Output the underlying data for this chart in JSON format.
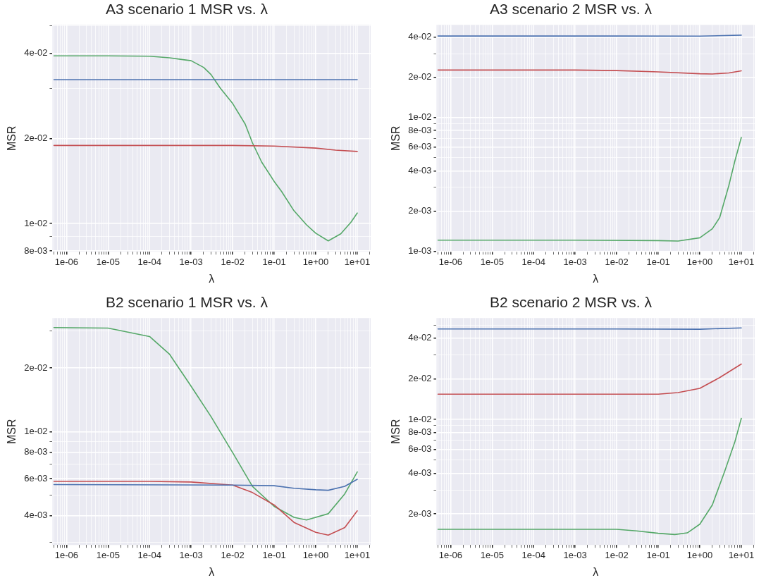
{
  "chart_data": [
    {
      "type": "line",
      "title": "A3 scenario 1 MSR vs. λ",
      "xlabel": "λ",
      "ylabel": "MSR",
      "log": "xy",
      "grid": true,
      "xlim": [
        4.6e-07,
        21
      ],
      "ylim": [
        0.00795,
        0.0505
      ],
      "xticks": [
        {
          "value": 5e-07,
          "label": null
        },
        {
          "value": 6e-07,
          "label": null
        },
        {
          "value": 7e-07,
          "label": null
        },
        {
          "value": 8e-07,
          "label": null
        },
        {
          "value": 9e-07,
          "label": null
        },
        {
          "value": 1e-06,
          "label": "1e-06"
        },
        {
          "value": 2e-06,
          "label": null
        },
        {
          "value": 3e-06,
          "label": null
        },
        {
          "value": 4e-06,
          "label": null
        },
        {
          "value": 5e-06,
          "label": null
        },
        {
          "value": 6e-06,
          "label": null
        },
        {
          "value": 7e-06,
          "label": null
        },
        {
          "value": 8e-06,
          "label": null
        },
        {
          "value": 9e-06,
          "label": null
        },
        {
          "value": 1e-05,
          "label": "1e-05"
        },
        {
          "value": 2e-05,
          "label": null
        },
        {
          "value": 3e-05,
          "label": null
        },
        {
          "value": 4e-05,
          "label": null
        },
        {
          "value": 5e-05,
          "label": null
        },
        {
          "value": 6e-05,
          "label": null
        },
        {
          "value": 7e-05,
          "label": null
        },
        {
          "value": 8e-05,
          "label": null
        },
        {
          "value": 9e-05,
          "label": null
        },
        {
          "value": 0.0001,
          "label": "1e-04"
        },
        {
          "value": 0.0002,
          "label": null
        },
        {
          "value": 0.0003,
          "label": null
        },
        {
          "value": 0.0004,
          "label": null
        },
        {
          "value": 0.0005,
          "label": null
        },
        {
          "value": 0.0006,
          "label": null
        },
        {
          "value": 0.0007,
          "label": null
        },
        {
          "value": 0.0008,
          "label": null
        },
        {
          "value": 0.0009,
          "label": null
        },
        {
          "value": 0.001,
          "label": "1e-03"
        },
        {
          "value": 0.002,
          "label": null
        },
        {
          "value": 0.003,
          "label": null
        },
        {
          "value": 0.004,
          "label": null
        },
        {
          "value": 0.005,
          "label": null
        },
        {
          "value": 0.006,
          "label": null
        },
        {
          "value": 0.007,
          "label": null
        },
        {
          "value": 0.008,
          "label": null
        },
        {
          "value": 0.009,
          "label": null
        },
        {
          "value": 0.01,
          "label": "1e-02"
        },
        {
          "value": 0.02,
          "label": null
        },
        {
          "value": 0.03,
          "label": null
        },
        {
          "value": 0.04,
          "label": null
        },
        {
          "value": 0.05,
          "label": null
        },
        {
          "value": 0.06,
          "label": null
        },
        {
          "value": 0.07,
          "label": null
        },
        {
          "value": 0.08,
          "label": null
        },
        {
          "value": 0.09,
          "label": null
        },
        {
          "value": 0.1,
          "label": "1e-01"
        },
        {
          "value": 0.2,
          "label": null
        },
        {
          "value": 0.3,
          "label": null
        },
        {
          "value": 0.4,
          "label": null
        },
        {
          "value": 0.5,
          "label": null
        },
        {
          "value": 0.6,
          "label": null
        },
        {
          "value": 0.7,
          "label": null
        },
        {
          "value": 0.8,
          "label": null
        },
        {
          "value": 0.9,
          "label": null
        },
        {
          "value": 1,
          "label": "1e+00"
        },
        {
          "value": 2,
          "label": null
        },
        {
          "value": 3,
          "label": null
        },
        {
          "value": 4,
          "label": null
        },
        {
          "value": 5,
          "label": null
        },
        {
          "value": 6,
          "label": null
        },
        {
          "value": 7,
          "label": null
        },
        {
          "value": 8,
          "label": null
        },
        {
          "value": 9,
          "label": null
        },
        {
          "value": 10,
          "label": "1e+01"
        },
        {
          "value": 20,
          "label": null
        }
      ],
      "yticks": [
        {
          "value": 0.008,
          "label": "8e-03"
        },
        {
          "value": 0.009,
          "label": null
        },
        {
          "value": 0.01,
          "label": "1e-02"
        },
        {
          "value": 0.02,
          "label": "2e-02"
        },
        {
          "value": 0.03,
          "label": null
        },
        {
          "value": 0.04,
          "label": "4e-02"
        },
        {
          "value": 0.05,
          "label": null
        }
      ],
      "series": [
        {
          "color": "#4c72b0",
          "x": [
            5e-07,
            0.001,
            1,
            10
          ],
          "values": [
            0.0323,
            0.0323,
            0.0323,
            0.0323
          ]
        },
        {
          "color": "#c44e52",
          "x": [
            5e-07,
            0.01,
            0.1,
            1,
            3,
            10
          ],
          "values": [
            0.0189,
            0.0189,
            0.0188,
            0.0185,
            0.0182,
            0.018
          ]
        },
        {
          "color": "#55a868",
          "x": [
            5e-07,
            1e-05,
            0.0001,
            0.0003,
            0.001,
            0.002,
            0.003,
            0.005,
            0.01,
            0.02,
            0.03,
            0.05,
            0.1,
            0.15,
            0.3,
            0.6,
            1,
            2,
            4,
            7,
            10
          ],
          "values": [
            0.0392,
            0.0392,
            0.0391,
            0.0386,
            0.0377,
            0.0357,
            0.0337,
            0.0302,
            0.0266,
            0.0225,
            0.0193,
            0.0165,
            0.0141,
            0.013,
            0.0111,
            0.0099,
            0.00925,
            0.00869,
            0.0092,
            0.0101,
            0.0109
          ]
        }
      ]
    },
    {
      "type": "line",
      "title": "A3 scenario 2 MSR vs. λ",
      "xlabel": "λ",
      "ylabel": "MSR",
      "log": "xy",
      "grid": true,
      "xlim": [
        4.6e-07,
        21
      ],
      "ylim": [
        0.00099,
        0.0495
      ],
      "xticks": [
        {
          "value": 5e-07,
          "label": null
        },
        {
          "value": 6e-07,
          "label": null
        },
        {
          "value": 7e-07,
          "label": null
        },
        {
          "value": 8e-07,
          "label": null
        },
        {
          "value": 9e-07,
          "label": null
        },
        {
          "value": 1e-06,
          "label": "1e-06"
        },
        {
          "value": 2e-06,
          "label": null
        },
        {
          "value": 3e-06,
          "label": null
        },
        {
          "value": 4e-06,
          "label": null
        },
        {
          "value": 5e-06,
          "label": null
        },
        {
          "value": 6e-06,
          "label": null
        },
        {
          "value": 7e-06,
          "label": null
        },
        {
          "value": 8e-06,
          "label": null
        },
        {
          "value": 9e-06,
          "label": null
        },
        {
          "value": 1e-05,
          "label": "1e-05"
        },
        {
          "value": 2e-05,
          "label": null
        },
        {
          "value": 3e-05,
          "label": null
        },
        {
          "value": 4e-05,
          "label": null
        },
        {
          "value": 5e-05,
          "label": null
        },
        {
          "value": 6e-05,
          "label": null
        },
        {
          "value": 7e-05,
          "label": null
        },
        {
          "value": 8e-05,
          "label": null
        },
        {
          "value": 9e-05,
          "label": null
        },
        {
          "value": 0.0001,
          "label": "1e-04"
        },
        {
          "value": 0.0002,
          "label": null
        },
        {
          "value": 0.0003,
          "label": null
        },
        {
          "value": 0.0004,
          "label": null
        },
        {
          "value": 0.0005,
          "label": null
        },
        {
          "value": 0.0006,
          "label": null
        },
        {
          "value": 0.0007,
          "label": null
        },
        {
          "value": 0.0008,
          "label": null
        },
        {
          "value": 0.0009,
          "label": null
        },
        {
          "value": 0.001,
          "label": "1e-03"
        },
        {
          "value": 0.002,
          "label": null
        },
        {
          "value": 0.003,
          "label": null
        },
        {
          "value": 0.004,
          "label": null
        },
        {
          "value": 0.005,
          "label": null
        },
        {
          "value": 0.006,
          "label": null
        },
        {
          "value": 0.007,
          "label": null
        },
        {
          "value": 0.008,
          "label": null
        },
        {
          "value": 0.009,
          "label": null
        },
        {
          "value": 0.01,
          "label": "1e-02"
        },
        {
          "value": 0.02,
          "label": null
        },
        {
          "value": 0.03,
          "label": null
        },
        {
          "value": 0.04,
          "label": null
        },
        {
          "value": 0.05,
          "label": null
        },
        {
          "value": 0.06,
          "label": null
        },
        {
          "value": 0.07,
          "label": null
        },
        {
          "value": 0.08,
          "label": null
        },
        {
          "value": 0.09,
          "label": null
        },
        {
          "value": 0.1,
          "label": "1e-01"
        },
        {
          "value": 0.2,
          "label": null
        },
        {
          "value": 0.3,
          "label": null
        },
        {
          "value": 0.4,
          "label": null
        },
        {
          "value": 0.5,
          "label": null
        },
        {
          "value": 0.6,
          "label": null
        },
        {
          "value": 0.7,
          "label": null
        },
        {
          "value": 0.8,
          "label": null
        },
        {
          "value": 0.9,
          "label": null
        },
        {
          "value": 1,
          "label": "1e+00"
        },
        {
          "value": 2,
          "label": null
        },
        {
          "value": 3,
          "label": null
        },
        {
          "value": 4,
          "label": null
        },
        {
          "value": 5,
          "label": null
        },
        {
          "value": 6,
          "label": null
        },
        {
          "value": 7,
          "label": null
        },
        {
          "value": 8,
          "label": null
        },
        {
          "value": 9,
          "label": null
        },
        {
          "value": 10,
          "label": "1e+01"
        },
        {
          "value": 20,
          "label": null
        }
      ],
      "yticks": [
        {
          "value": 0.001,
          "label": "1e-03"
        },
        {
          "value": 0.002,
          "label": "2e-03"
        },
        {
          "value": 0.003,
          "label": null
        },
        {
          "value": 0.004,
          "label": "4e-03"
        },
        {
          "value": 0.005,
          "label": null
        },
        {
          "value": 0.006,
          "label": "6e-03"
        },
        {
          "value": 0.007,
          "label": null
        },
        {
          "value": 0.008,
          "label": "8e-03"
        },
        {
          "value": 0.009,
          "label": null
        },
        {
          "value": 0.01,
          "label": "1e-02"
        },
        {
          "value": 0.02,
          "label": "2e-02"
        },
        {
          "value": 0.03,
          "label": null
        },
        {
          "value": 0.04,
          "label": "4e-02"
        }
      ],
      "series": [
        {
          "color": "#4c72b0",
          "x": [
            5e-07,
            0.01,
            1,
            10
          ],
          "values": [
            0.0408,
            0.0408,
            0.0407,
            0.0414
          ]
        },
        {
          "color": "#c44e52",
          "x": [
            5e-07,
            0.001,
            0.01,
            0.1,
            1,
            2,
            5,
            10
          ],
          "values": [
            0.0227,
            0.0227,
            0.0225,
            0.022,
            0.0213,
            0.0212,
            0.0216,
            0.0224
          ]
        },
        {
          "color": "#55a868",
          "x": [
            5e-07,
            0.001,
            0.1,
            0.3,
            1,
            2,
            3,
            5,
            7,
            10
          ],
          "values": [
            0.00121,
            0.00121,
            0.0012,
            0.00119,
            0.00126,
            0.00147,
            0.00178,
            0.0031,
            0.00474,
            0.00711
          ]
        }
      ]
    },
    {
      "type": "line",
      "title": "B2 scenario 1 MSR vs. λ",
      "xlabel": "λ",
      "ylabel": "MSR",
      "log": "xy",
      "grid": true,
      "xlim": [
        4.6e-07,
        21
      ],
      "ylim": [
        0.00291,
        0.0345
      ],
      "xticks": [
        {
          "value": 5e-07,
          "label": null
        },
        {
          "value": 6e-07,
          "label": null
        },
        {
          "value": 7e-07,
          "label": null
        },
        {
          "value": 8e-07,
          "label": null
        },
        {
          "value": 9e-07,
          "label": null
        },
        {
          "value": 1e-06,
          "label": "1e-06"
        },
        {
          "value": 2e-06,
          "label": null
        },
        {
          "value": 3e-06,
          "label": null
        },
        {
          "value": 4e-06,
          "label": null
        },
        {
          "value": 5e-06,
          "label": null
        },
        {
          "value": 6e-06,
          "label": null
        },
        {
          "value": 7e-06,
          "label": null
        },
        {
          "value": 8e-06,
          "label": null
        },
        {
          "value": 9e-06,
          "label": null
        },
        {
          "value": 1e-05,
          "label": "1e-05"
        },
        {
          "value": 2e-05,
          "label": null
        },
        {
          "value": 3e-05,
          "label": null
        },
        {
          "value": 4e-05,
          "label": null
        },
        {
          "value": 5e-05,
          "label": null
        },
        {
          "value": 6e-05,
          "label": null
        },
        {
          "value": 7e-05,
          "label": null
        },
        {
          "value": 8e-05,
          "label": null
        },
        {
          "value": 9e-05,
          "label": null
        },
        {
          "value": 0.0001,
          "label": "1e-04"
        },
        {
          "value": 0.0002,
          "label": null
        },
        {
          "value": 0.0003,
          "label": null
        },
        {
          "value": 0.0004,
          "label": null
        },
        {
          "value": 0.0005,
          "label": null
        },
        {
          "value": 0.0006,
          "label": null
        },
        {
          "value": 0.0007,
          "label": null
        },
        {
          "value": 0.0008,
          "label": null
        },
        {
          "value": 0.0009,
          "label": null
        },
        {
          "value": 0.001,
          "label": "1e-03"
        },
        {
          "value": 0.002,
          "label": null
        },
        {
          "value": 0.003,
          "label": null
        },
        {
          "value": 0.004,
          "label": null
        },
        {
          "value": 0.005,
          "label": null
        },
        {
          "value": 0.006,
          "label": null
        },
        {
          "value": 0.007,
          "label": null
        },
        {
          "value": 0.008,
          "label": null
        },
        {
          "value": 0.009,
          "label": null
        },
        {
          "value": 0.01,
          "label": "1e-02"
        },
        {
          "value": 0.02,
          "label": null
        },
        {
          "value": 0.03,
          "label": null
        },
        {
          "value": 0.04,
          "label": null
        },
        {
          "value": 0.05,
          "label": null
        },
        {
          "value": 0.06,
          "label": null
        },
        {
          "value": 0.07,
          "label": null
        },
        {
          "value": 0.08,
          "label": null
        },
        {
          "value": 0.09,
          "label": null
        },
        {
          "value": 0.1,
          "label": "1e-01"
        },
        {
          "value": 0.2,
          "label": null
        },
        {
          "value": 0.3,
          "label": null
        },
        {
          "value": 0.4,
          "label": null
        },
        {
          "value": 0.5,
          "label": null
        },
        {
          "value": 0.6,
          "label": null
        },
        {
          "value": 0.7,
          "label": null
        },
        {
          "value": 0.8,
          "label": null
        },
        {
          "value": 0.9,
          "label": null
        },
        {
          "value": 1,
          "label": "1e+00"
        },
        {
          "value": 2,
          "label": null
        },
        {
          "value": 3,
          "label": null
        },
        {
          "value": 4,
          "label": null
        },
        {
          "value": 5,
          "label": null
        },
        {
          "value": 6,
          "label": null
        },
        {
          "value": 7,
          "label": null
        },
        {
          "value": 8,
          "label": null
        },
        {
          "value": 9,
          "label": null
        },
        {
          "value": 10,
          "label": "1e+01"
        },
        {
          "value": 20,
          "label": null
        }
      ],
      "yticks": [
        {
          "value": 0.003,
          "label": null
        },
        {
          "value": 0.004,
          "label": "4e-03"
        },
        {
          "value": 0.005,
          "label": null
        },
        {
          "value": 0.006,
          "label": "6e-03"
        },
        {
          "value": 0.007,
          "label": null
        },
        {
          "value": 0.008,
          "label": "8e-03"
        },
        {
          "value": 0.009,
          "label": null
        },
        {
          "value": 0.01,
          "label": "1e-02"
        },
        {
          "value": 0.02,
          "label": "2e-02"
        },
        {
          "value": 0.03,
          "label": null
        }
      ],
      "series": [
        {
          "color": "#4c72b0",
          "x": [
            5e-07,
            0.01,
            0.1,
            0.3,
            1,
            2,
            5,
            10
          ],
          "values": [
            0.00562,
            0.00559,
            0.00555,
            0.0054,
            0.00531,
            0.00528,
            0.00551,
            0.00595
          ]
        },
        {
          "color": "#c44e52",
          "x": [
            5e-07,
            0.0001,
            0.001,
            0.01,
            0.03,
            0.1,
            0.3,
            1,
            2,
            5,
            10
          ],
          "values": [
            0.00582,
            0.00582,
            0.00578,
            0.00559,
            0.00515,
            0.0045,
            0.00372,
            0.00334,
            0.00324,
            0.00352,
            0.00422
          ]
        },
        {
          "color": "#55a868",
          "x": [
            5e-07,
            1e-05,
            0.0001,
            0.0003,
            0.001,
            0.003,
            0.01,
            0.03,
            0.1,
            0.3,
            0.6,
            2,
            5,
            10
          ],
          "values": [
            0.0311,
            0.0309,
            0.0282,
            0.0233,
            0.0164,
            0.0118,
            0.00796,
            0.00551,
            0.00443,
            0.00393,
            0.00382,
            0.00409,
            0.00508,
            0.00645
          ]
        }
      ]
    },
    {
      "type": "line",
      "title": "B2 scenario 2 MSR vs. λ",
      "xlabel": "λ",
      "ylabel": "MSR",
      "log": "xy",
      "grid": true,
      "xlim": [
        4.6e-07,
        21
      ],
      "ylim": [
        0.00118,
        0.0563
      ],
      "xticks": [
        {
          "value": 5e-07,
          "label": null
        },
        {
          "value": 6e-07,
          "label": null
        },
        {
          "value": 7e-07,
          "label": null
        },
        {
          "value": 8e-07,
          "label": null
        },
        {
          "value": 9e-07,
          "label": null
        },
        {
          "value": 1e-06,
          "label": "1e-06"
        },
        {
          "value": 2e-06,
          "label": null
        },
        {
          "value": 3e-06,
          "label": null
        },
        {
          "value": 4e-06,
          "label": null
        },
        {
          "value": 5e-06,
          "label": null
        },
        {
          "value": 6e-06,
          "label": null
        },
        {
          "value": 7e-06,
          "label": null
        },
        {
          "value": 8e-06,
          "label": null
        },
        {
          "value": 9e-06,
          "label": null
        },
        {
          "value": 1e-05,
          "label": "1e-05"
        },
        {
          "value": 2e-05,
          "label": null
        },
        {
          "value": 3e-05,
          "label": null
        },
        {
          "value": 4e-05,
          "label": null
        },
        {
          "value": 5e-05,
          "label": null
        },
        {
          "value": 6e-05,
          "label": null
        },
        {
          "value": 7e-05,
          "label": null
        },
        {
          "value": 8e-05,
          "label": null
        },
        {
          "value": 9e-05,
          "label": null
        },
        {
          "value": 0.0001,
          "label": "1e-04"
        },
        {
          "value": 0.0002,
          "label": null
        },
        {
          "value": 0.0003,
          "label": null
        },
        {
          "value": 0.0004,
          "label": null
        },
        {
          "value": 0.0005,
          "label": null
        },
        {
          "value": 0.0006,
          "label": null
        },
        {
          "value": 0.0007,
          "label": null
        },
        {
          "value": 0.0008,
          "label": null
        },
        {
          "value": 0.0009,
          "label": null
        },
        {
          "value": 0.001,
          "label": "1e-03"
        },
        {
          "value": 0.002,
          "label": null
        },
        {
          "value": 0.003,
          "label": null
        },
        {
          "value": 0.004,
          "label": null
        },
        {
          "value": 0.005,
          "label": null
        },
        {
          "value": 0.006,
          "label": null
        },
        {
          "value": 0.007,
          "label": null
        },
        {
          "value": 0.008,
          "label": null
        },
        {
          "value": 0.009,
          "label": null
        },
        {
          "value": 0.01,
          "label": "1e-02"
        },
        {
          "value": 0.02,
          "label": null
        },
        {
          "value": 0.03,
          "label": null
        },
        {
          "value": 0.04,
          "label": null
        },
        {
          "value": 0.05,
          "label": null
        },
        {
          "value": 0.06,
          "label": null
        },
        {
          "value": 0.07,
          "label": null
        },
        {
          "value": 0.08,
          "label": null
        },
        {
          "value": 0.09,
          "label": null
        },
        {
          "value": 0.1,
          "label": "1e-01"
        },
        {
          "value": 0.2,
          "label": null
        },
        {
          "value": 0.3,
          "label": null
        },
        {
          "value": 0.4,
          "label": null
        },
        {
          "value": 0.5,
          "label": null
        },
        {
          "value": 0.6,
          "label": null
        },
        {
          "value": 0.7,
          "label": null
        },
        {
          "value": 0.8,
          "label": null
        },
        {
          "value": 0.9,
          "label": null
        },
        {
          "value": 1,
          "label": "1e+00"
        },
        {
          "value": 2,
          "label": null
        },
        {
          "value": 3,
          "label": null
        },
        {
          "value": 4,
          "label": null
        },
        {
          "value": 5,
          "label": null
        },
        {
          "value": 6,
          "label": null
        },
        {
          "value": 7,
          "label": null
        },
        {
          "value": 8,
          "label": null
        },
        {
          "value": 9,
          "label": null
        },
        {
          "value": 10,
          "label": "1e+01"
        },
        {
          "value": 20,
          "label": null
        }
      ],
      "yticks": [
        {
          "value": 0.002,
          "label": "2e-03"
        },
        {
          "value": 0.003,
          "label": null
        },
        {
          "value": 0.004,
          "label": "4e-03"
        },
        {
          "value": 0.005,
          "label": null
        },
        {
          "value": 0.006,
          "label": "6e-03"
        },
        {
          "value": 0.007,
          "label": null
        },
        {
          "value": 0.008,
          "label": "8e-03"
        },
        {
          "value": 0.009,
          "label": null
        },
        {
          "value": 0.01,
          "label": "1e-02"
        },
        {
          "value": 0.02,
          "label": "2e-02"
        },
        {
          "value": 0.03,
          "label": null
        },
        {
          "value": 0.04,
          "label": "4e-02"
        },
        {
          "value": 0.05,
          "label": null
        }
      ],
      "series": [
        {
          "color": "#4c72b0",
          "x": [
            5e-07,
            0.01,
            1,
            10
          ],
          "values": [
            0.0467,
            0.0467,
            0.0465,
            0.0476
          ]
        },
        {
          "color": "#c44e52",
          "x": [
            5e-07,
            0.01,
            0.1,
            0.3,
            1,
            3,
            10
          ],
          "values": [
            0.0154,
            0.0154,
            0.0154,
            0.0158,
            0.017,
            0.0204,
            0.0257
          ]
        },
        {
          "color": "#55a868",
          "x": [
            5e-07,
            0.01,
            0.03,
            0.1,
            0.25,
            0.5,
            1,
            2,
            4,
            7,
            10
          ],
          "values": [
            0.00154,
            0.00154,
            0.0015,
            0.00144,
            0.00141,
            0.00145,
            0.00168,
            0.00233,
            0.00416,
            0.00684,
            0.0102
          ]
        }
      ]
    }
  ]
}
